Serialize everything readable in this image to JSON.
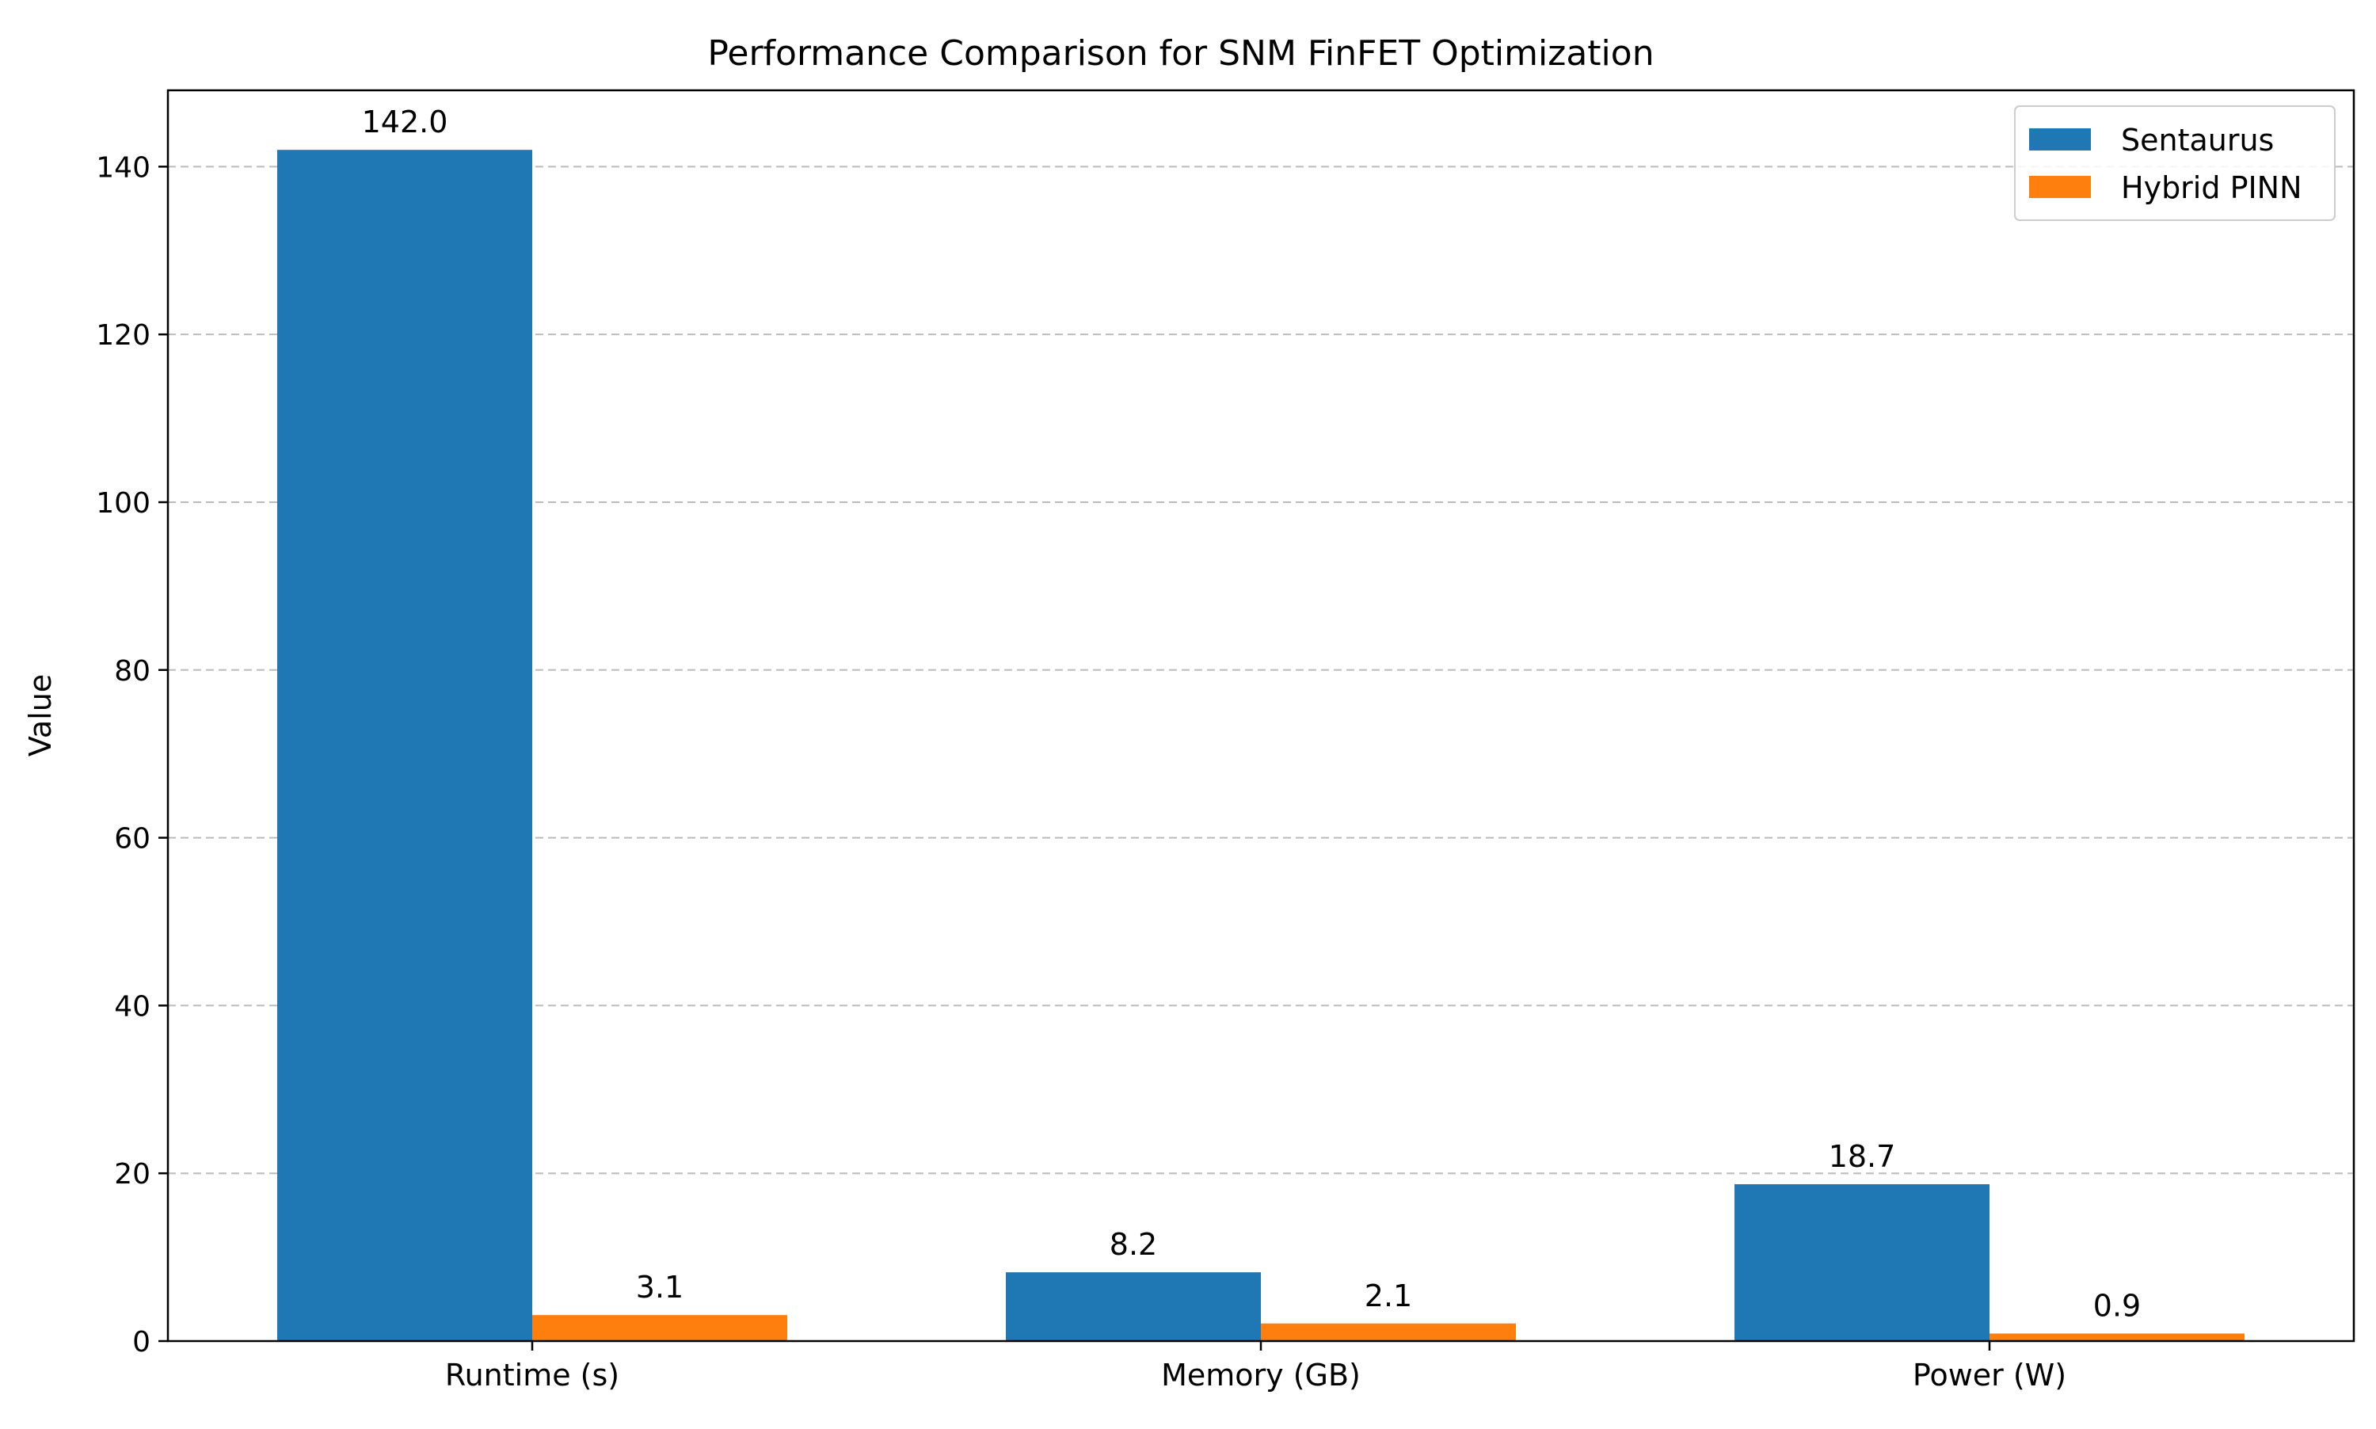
{
  "chart_data": {
    "type": "bar",
    "title": "Performance Comparison for SNM FinFET Optimization",
    "xlabel": "",
    "ylabel": "Value",
    "categories": [
      "Runtime (s)",
      "Memory (GB)",
      "Power (W)"
    ],
    "series": [
      {
        "name": "Sentaurus",
        "color": "#1f77b4",
        "values": [
          142.0,
          8.2,
          18.7
        ],
        "labels": [
          "142.0",
          "8.2",
          "18.7"
        ]
      },
      {
        "name": "Hybrid PINN",
        "color": "#ff7f0e",
        "values": [
          3.1,
          2.1,
          0.9
        ],
        "labels": [
          "3.1",
          "2.1",
          "0.9"
        ]
      }
    ],
    "ylim": [
      0,
      149.1
    ],
    "yticks": [
      0,
      20,
      40,
      60,
      80,
      100,
      120,
      140
    ],
    "ytick_labels": [
      "0",
      "20",
      "40",
      "60",
      "80",
      "100",
      "120",
      "140"
    ],
    "grid": "y-dashed",
    "legend_position": "top-right"
  }
}
